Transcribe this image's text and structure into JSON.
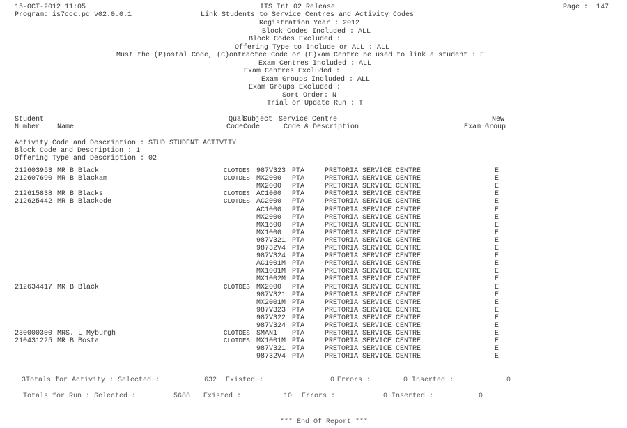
{
  "report": {
    "datetime": "15-OCT-2012 11:05",
    "program": "Program: is7ccc.pc v02.0.0.1",
    "release": "ITS Int 02 Release",
    "title": "Link Students to Service Centres and Activity Codes",
    "page": "Page :  147",
    "params": [
      "Registration Year : 2012",
      "Block Codes Included : ALL",
      "Block Codes Excluded :",
      "Offering Type to Include or ALL : ALL",
      "Must the (P)ostal Code, (C)ontractee Code or (E)xam Centre be used to link a student : E",
      "Exam Centres Included : ALL",
      "Exam Centres Excluded :",
      "Exam Groups Included : ALL",
      "Exam Groups Excluded :",
      "Sort Order: N",
      "Trial or Update Run : T"
    ]
  },
  "columns": {
    "student_1": "Student",
    "student_2": "Number",
    "name": "Name",
    "qual_1": "Qual",
    "qual_2": "Code.",
    "subject_1": "Subject",
    "subject_2": "Code",
    "centre_1": "Service Centre",
    "centre_2": "Code & Description",
    "group_1": "New",
    "group_2": "Exam Group"
  },
  "section": {
    "activity": "Activity Code and Description : STUD STUDENT ACTIVITY",
    "block": "Block Code and Description : 1",
    "offering": "Offering Type and Description : 02"
  },
  "rows": [
    {
      "number": "212603953",
      "name": "MR B Black",
      "qual": "CLOTDES",
      "subject": "987V323",
      "centre": "PTA",
      "desc": "PRETORIA SERVICE CENTRE",
      "group": "E"
    },
    {
      "number": "212607690",
      "name": "MR B Blackam",
      "qual": "CLOTDES",
      "subject": "MX2000",
      "centre": "PTA",
      "desc": "PRETORIA SERVICE CENTRE",
      "group": "E"
    },
    {
      "number": "",
      "name": "",
      "qual": "",
      "subject": "MX2000",
      "centre": "PTA",
      "desc": "PRETORIA SERVICE CENTRE",
      "group": "E"
    },
    {
      "number": "212615838",
      "name": "MR B Blacks",
      "qual": "CLOTDES",
      "subject": "AC1000",
      "centre": "PTA",
      "desc": "PRETORIA SERVICE CENTRE",
      "group": "E"
    },
    {
      "number": "212625442",
      "name": "MR B Blackode",
      "qual": "CLOTDES",
      "subject": "AC2000",
      "centre": "PTA",
      "desc": "PRETORIA SERVICE CENTRE",
      "group": "E"
    },
    {
      "number": "",
      "name": "",
      "qual": "",
      "subject": "AC1000",
      "centre": "PTA",
      "desc": "PRETORIA SERVICE CENTRE",
      "group": "E"
    },
    {
      "number": "",
      "name": "",
      "qual": "",
      "subject": "MX2000",
      "centre": "PTA",
      "desc": "PRETORIA SERVICE CENTRE",
      "group": "E"
    },
    {
      "number": "",
      "name": "",
      "qual": "",
      "subject": "MX1600",
      "centre": "PTA",
      "desc": "PRETORIA SERVICE CENTRE",
      "group": "E"
    },
    {
      "number": "",
      "name": "",
      "qual": "",
      "subject": "MX1000",
      "centre": "PTA",
      "desc": "PRETORIA SERVICE CENTRE",
      "group": "E"
    },
    {
      "number": "",
      "name": "",
      "qual": "",
      "subject": "987V321",
      "centre": "PTA",
      "desc": "PRETORIA SERVICE CENTRE",
      "group": "E"
    },
    {
      "number": "",
      "name": "",
      "qual": "",
      "subject": "98732V4",
      "centre": "PTA",
      "desc": "PRETORIA SERVICE CENTRE",
      "group": "E"
    },
    {
      "number": "",
      "name": "",
      "qual": "",
      "subject": "987V324",
      "centre": "PTA",
      "desc": "PRETORIA SERVICE CENTRE",
      "group": "E"
    },
    {
      "number": "",
      "name": "",
      "qual": "",
      "subject": "AC1001M",
      "centre": "PTA",
      "desc": "PRETORIA SERVICE CENTRE",
      "group": "E"
    },
    {
      "number": "",
      "name": "",
      "qual": "",
      "subject": "MX1001M",
      "centre": "PTA",
      "desc": "PRETORIA SERVICE CENTRE",
      "group": "E"
    },
    {
      "number": "",
      "name": "",
      "qual": "",
      "subject": "MX1002M",
      "centre": "PTA",
      "desc": "PRETORIA SERVICE CENTRE",
      "group": "E"
    },
    {
      "number": "212634417",
      "name": "MR B Black",
      "qual": "CLOTDES",
      "subject": "MX2000",
      "centre": "PTA",
      "desc": "PRETORIA SERVICE CENTRE",
      "group": "E"
    },
    {
      "number": "",
      "name": "",
      "qual": "",
      "subject": "987V321",
      "centre": "PTA",
      "desc": "PRETORIA SERVICE CENTRE",
      "group": "E"
    },
    {
      "number": "",
      "name": "",
      "qual": "",
      "subject": "MX2001M",
      "centre": "PTA",
      "desc": "PRETORIA SERVICE CENTRE",
      "group": "E"
    },
    {
      "number": "",
      "name": "",
      "qual": "",
      "subject": "987V323",
      "centre": "PTA",
      "desc": "PRETORIA SERVICE CENTRE",
      "group": "E"
    },
    {
      "number": "",
      "name": "",
      "qual": "",
      "subject": "987V322",
      "centre": "PTA",
      "desc": "PRETORIA SERVICE CENTRE",
      "group": "E"
    },
    {
      "number": "",
      "name": "",
      "qual": "",
      "subject": "987V324",
      "centre": "PTA",
      "desc": "PRETORIA SERVICE CENTRE",
      "group": "E"
    },
    {
      "number": "230000300",
      "name": "MRS. L Myburgh",
      "qual": "CLOTDES",
      "subject": "SMAN1",
      "centre": "PTA",
      "desc": "PRETORIA SERVICE CENTRE",
      "group": "E"
    },
    {
      "number": "210431225",
      "name": "MR B Bosta",
      "qual": "CLOTDES",
      "subject": "MX1001M",
      "centre": "PTA",
      "desc": "PRETORIA SERVICE CENTRE",
      "group": "E"
    },
    {
      "number": "",
      "name": "",
      "qual": "",
      "subject": "987V321",
      "centre": "PTA",
      "desc": "PRETORIA SERVICE CENTRE",
      "group": "E"
    },
    {
      "number": "",
      "name": "",
      "qual": "",
      "subject": "98732V4",
      "centre": "PTA",
      "desc": "PRETORIA SERVICE CENTRE",
      "group": "E"
    }
  ],
  "totals_activity": {
    "label": "3Totals for Activity : Selected :",
    "selected": "632",
    "existed_label": "Existed :",
    "existed": "0",
    "errors_label": "Errors :",
    "errors": "0",
    "inserted_label": "Inserted :",
    "inserted": "0"
  },
  "totals_run": {
    "label": "Totals for Run : Selected :",
    "selected": "5688",
    "existed_label": "Existed :",
    "existed": "10",
    "errors_label": "Errors :",
    "errors": "0",
    "inserted_label": "Inserted :",
    "inserted": "0"
  },
  "footer": "*** End Of Report ***"
}
